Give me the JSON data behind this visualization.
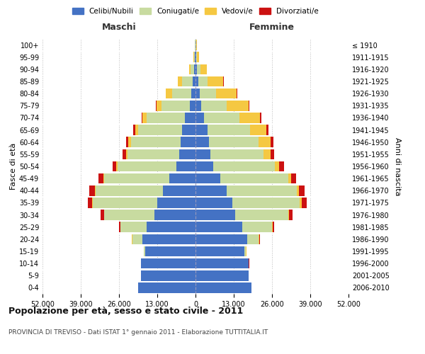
{
  "age_groups": [
    "0-4",
    "5-9",
    "10-14",
    "15-19",
    "20-24",
    "25-29",
    "30-34",
    "35-39",
    "40-44",
    "45-49",
    "50-54",
    "55-59",
    "60-64",
    "65-69",
    "70-74",
    "75-79",
    "80-84",
    "85-89",
    "90-94",
    "95-99",
    "100+"
  ],
  "birth_years": [
    "2006-2010",
    "2001-2005",
    "1996-2000",
    "1991-1995",
    "1986-1990",
    "1981-1985",
    "1976-1980",
    "1971-1975",
    "1966-1970",
    "1961-1965",
    "1956-1960",
    "1951-1955",
    "1946-1950",
    "1941-1945",
    "1936-1940",
    "1931-1935",
    "1926-1930",
    "1921-1925",
    "1916-1920",
    "1911-1915",
    "≤ 1910"
  ],
  "males": {
    "celibi": [
      19500,
      18500,
      18500,
      17000,
      18000,
      16500,
      14000,
      13000,
      11000,
      9000,
      6500,
      5500,
      5000,
      4500,
      3500,
      2000,
      1500,
      1000,
      500,
      200,
      100
    ],
    "coniugati": [
      30,
      50,
      100,
      500,
      3500,
      9000,
      17000,
      22000,
      23000,
      22000,
      20000,
      17500,
      17000,
      15000,
      13000,
      9500,
      6500,
      3500,
      1200,
      400,
      150
    ],
    "vedovi": [
      5,
      5,
      10,
      20,
      50,
      100,
      150,
      200,
      300,
      300,
      400,
      600,
      800,
      1000,
      1500,
      1800,
      2000,
      1500,
      500,
      150,
      50
    ],
    "divorziati": [
      10,
      10,
      20,
      50,
      150,
      400,
      1000,
      1500,
      1700,
      1600,
      1200,
      1100,
      900,
      600,
      400,
      200,
      150,
      100,
      50,
      20,
      10
    ]
  },
  "females": {
    "nubili": [
      19000,
      18000,
      18000,
      16500,
      17500,
      16000,
      13500,
      12500,
      10500,
      8500,
      6000,
      5000,
      4500,
      4000,
      3000,
      2000,
      1500,
      1000,
      600,
      200,
      100
    ],
    "coniugate": [
      50,
      80,
      150,
      700,
      4000,
      10000,
      18000,
      23000,
      24000,
      23000,
      21000,
      18000,
      17000,
      14500,
      12000,
      8500,
      5500,
      3000,
      1200,
      400,
      150
    ],
    "vedove": [
      5,
      8,
      15,
      30,
      100,
      200,
      300,
      500,
      700,
      900,
      1500,
      2500,
      4000,
      5500,
      7000,
      7500,
      7000,
      5500,
      2000,
      600,
      200
    ],
    "divorziate": [
      10,
      10,
      20,
      60,
      200,
      500,
      1100,
      1700,
      1900,
      1800,
      1500,
      1300,
      1000,
      700,
      400,
      200,
      150,
      100,
      50,
      20,
      10
    ]
  },
  "colors": {
    "celibi_nubili": "#4472c4",
    "coniugati": "#c8dba0",
    "vedovi": "#f5c842",
    "divorziati": "#cc1111"
  },
  "xlim": 52000,
  "title": "Popolazione per età, sesso e stato civile - 2011",
  "subtitle": "PROVINCIA DI TREVISO - Dati ISTAT 1° gennaio 2011 - Elaborazione TUTTITALIA.IT",
  "ylabel_left": "Fasce di età",
  "ylabel_right": "Anni di nascita",
  "label_maschi": "Maschi",
  "label_femmine": "Femmine",
  "legend_labels": [
    "Celibi/Nubili",
    "Coniugati/e",
    "Vedovi/e",
    "Divorziati/e"
  ],
  "background_color": "#ffffff",
  "grid_color": "#bbbbbb"
}
